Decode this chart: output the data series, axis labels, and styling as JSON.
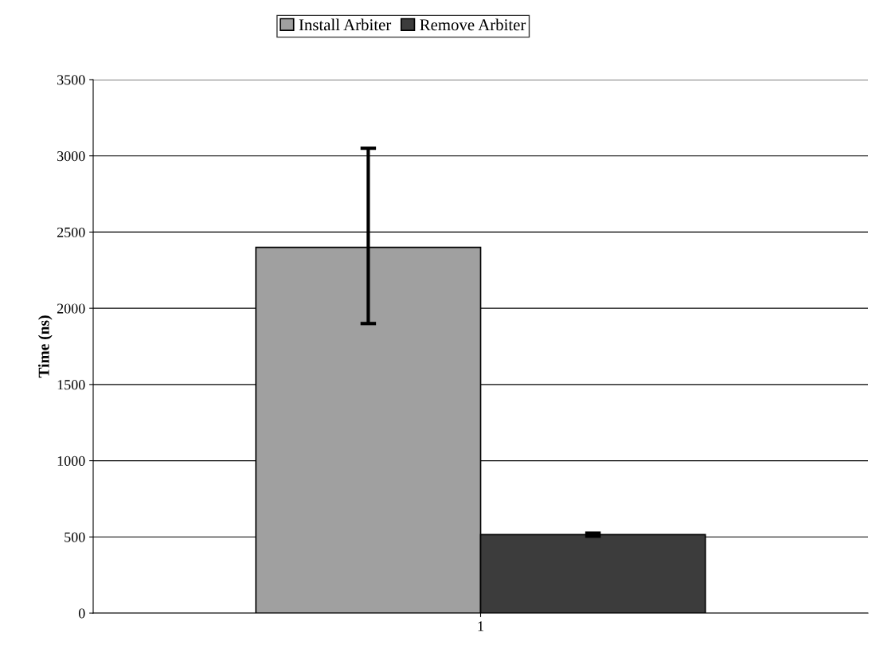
{
  "chart_data": {
    "type": "bar",
    "ylabel": "Time (ns)",
    "categories": [
      "1"
    ],
    "series": [
      {
        "name": "Install Arbiter",
        "color": "#a0a0a0",
        "values": [
          2400
        ],
        "errors": [
          [
            1900,
            3050
          ]
        ]
      },
      {
        "name": "Remove Arbiter",
        "color": "#3c3c3c",
        "values": [
          515
        ],
        "errors": [
          10
        ]
      }
    ],
    "ylim": [
      0,
      3500
    ],
    "yticks": [
      0,
      500,
      1000,
      1500,
      2000,
      2500,
      3000,
      3500
    ],
    "grid": "y",
    "legend": "top"
  }
}
